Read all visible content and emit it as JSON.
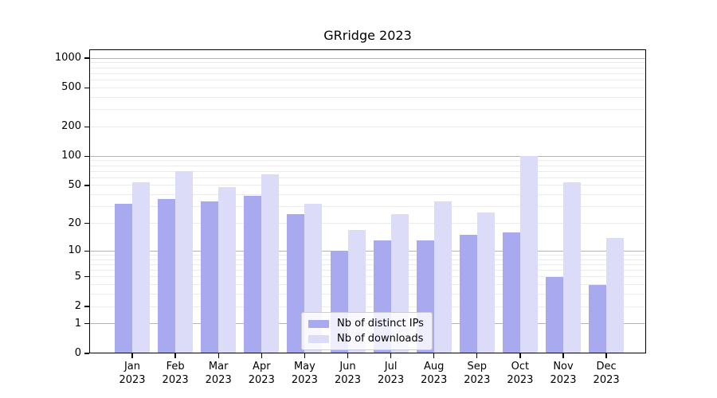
{
  "chart": {
    "title": "GRridge 2023"
  },
  "chart_data": {
    "type": "bar",
    "title": "GRridge 2023",
    "categories": [
      "Jan 2023",
      "Feb 2023",
      "Mar 2023",
      "Apr 2023",
      "May 2023",
      "Jun 2023",
      "Jul 2023",
      "Aug 2023",
      "Sep 2023",
      "Oct 2023",
      "Nov 2023",
      "Dec 2023"
    ],
    "series": [
      {
        "name": "Nb of distinct IPs",
        "color": "#a9a9f0",
        "values": [
          32,
          36,
          34,
          39,
          25,
          10,
          13,
          13,
          15,
          16,
          5,
          4
        ]
      },
      {
        "name": "Nb of downloads",
        "color": "#dcdcf8",
        "values": [
          54,
          70,
          48,
          65,
          32,
          17,
          25,
          34,
          26,
          100,
          54,
          14
        ]
      }
    ],
    "xlabel": "",
    "ylabel": "",
    "y_scale": "log1p",
    "y_ticks": [
      0,
      1,
      2,
      5,
      10,
      20,
      50,
      100,
      200,
      500,
      1000
    ],
    "ylim": [
      0,
      1230
    ],
    "grid": "horizontal",
    "legend_position": "lower center"
  }
}
